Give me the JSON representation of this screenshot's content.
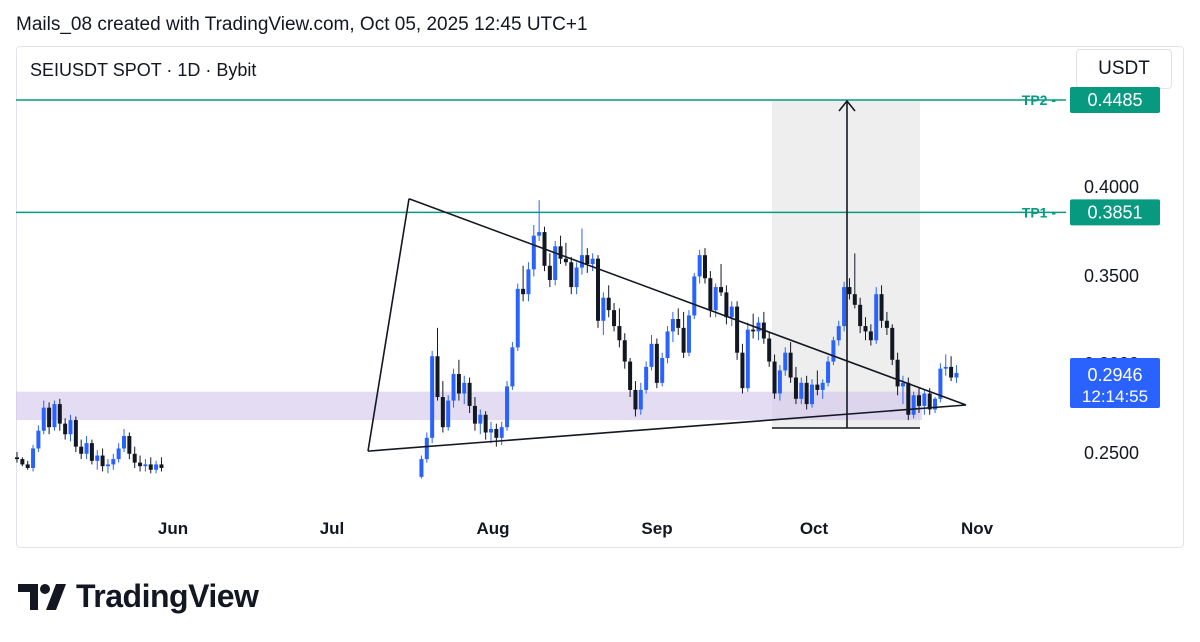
{
  "header": {
    "caption": "Mails_08 created with TradingView.com, Oct 05, 2025 12:45 UTC+1",
    "symbol": "SEIUSDT SPOT · 1D · Bybit",
    "currency": "USDT"
  },
  "brand": {
    "name": "TradingView"
  },
  "colors": {
    "up": "#2962ff",
    "down": "#131722",
    "tp": "#089981",
    "zone": "#d1c4e9",
    "projection": "#ebebeb",
    "last_price_bg": "#2962ff"
  },
  "chart_data": {
    "type": "candlestick",
    "ylim": [
      0.235,
      0.46
    ],
    "x_tick_labels": [
      "Jun",
      "Jul",
      "Aug",
      "Sep",
      "Oct",
      "Nov"
    ],
    "y_tick_labels": [
      "0.4000",
      "0.3500",
      "0.2500"
    ],
    "partially_hidden_tick": "0.3000",
    "levels": [
      {
        "name": "TP2",
        "price": 0.4485,
        "label": "0.4485"
      },
      {
        "name": "TP1",
        "price": 0.3851,
        "label": "0.3851"
      }
    ],
    "last_price": {
      "value": 0.2946,
      "label": "0.2946",
      "countdown": "12:14:55"
    },
    "support_zone": {
      "from": 0.268,
      "to": 0.284
    },
    "triangle": {
      "apex": 0.2765,
      "upper_start": 0.3928,
      "lower_start": 0.2505
    },
    "projection_target": 0.4485,
    "candles": [
      [
        0.247,
        0.25,
        0.244,
        0.246
      ],
      [
        0.246,
        0.247,
        0.242,
        0.243
      ],
      [
        0.243,
        0.245,
        0.24,
        0.241
      ],
      [
        0.241,
        0.254,
        0.239,
        0.252
      ],
      [
        0.252,
        0.265,
        0.25,
        0.262
      ],
      [
        0.262,
        0.279,
        0.26,
        0.275
      ],
      [
        0.275,
        0.278,
        0.26,
        0.264
      ],
      [
        0.264,
        0.279,
        0.262,
        0.277
      ],
      [
        0.277,
        0.28,
        0.262,
        0.266
      ],
      [
        0.266,
        0.269,
        0.257,
        0.26
      ],
      [
        0.26,
        0.271,
        0.256,
        0.268
      ],
      [
        0.268,
        0.27,
        0.25,
        0.253
      ],
      [
        0.253,
        0.257,
        0.246,
        0.249
      ],
      [
        0.249,
        0.259,
        0.246,
        0.255
      ],
      [
        0.255,
        0.257,
        0.243,
        0.245
      ],
      [
        0.245,
        0.251,
        0.24,
        0.248
      ],
      [
        0.248,
        0.252,
        0.239,
        0.242
      ],
      [
        0.242,
        0.246,
        0.238,
        0.243
      ],
      [
        0.243,
        0.249,
        0.24,
        0.246
      ],
      [
        0.246,
        0.255,
        0.244,
        0.252
      ],
      [
        0.252,
        0.263,
        0.25,
        0.259
      ],
      [
        0.259,
        0.261,
        0.246,
        0.249
      ],
      [
        0.249,
        0.253,
        0.241,
        0.244
      ],
      [
        0.244,
        0.248,
        0.239,
        0.242
      ],
      [
        0.242,
        0.246,
        0.239,
        0.243
      ],
      [
        0.243,
        0.247,
        0.238,
        0.24
      ],
      [
        0.24,
        0.245,
        0.238,
        0.243
      ],
      [
        0.243,
        0.247,
        0.239,
        0.241
      ],
      [
        0.236,
        0.248,
        0.235,
        0.246
      ],
      [
        0.246,
        0.261,
        0.244,
        0.258
      ],
      [
        0.258,
        0.307,
        0.255,
        0.304
      ],
      [
        0.304,
        0.32,
        0.279,
        0.281
      ],
      [
        0.281,
        0.29,
        0.261,
        0.264
      ],
      [
        0.264,
        0.282,
        0.262,
        0.279
      ],
      [
        0.279,
        0.297,
        0.275,
        0.294
      ],
      [
        0.294,
        0.302,
        0.279,
        0.283
      ],
      [
        0.283,
        0.293,
        0.277,
        0.289
      ],
      [
        0.289,
        0.292,
        0.272,
        0.276
      ],
      [
        0.276,
        0.281,
        0.262,
        0.266
      ],
      [
        0.266,
        0.274,
        0.26,
        0.271
      ],
      [
        0.271,
        0.273,
        0.257,
        0.261
      ],
      [
        0.261,
        0.267,
        0.255,
        0.263
      ],
      [
        0.263,
        0.266,
        0.253,
        0.258
      ],
      [
        0.258,
        0.267,
        0.254,
        0.264
      ],
      [
        0.264,
        0.29,
        0.262,
        0.287
      ],
      [
        0.287,
        0.312,
        0.285,
        0.309
      ],
      [
        0.309,
        0.345,
        0.307,
        0.342
      ],
      [
        0.342,
        0.355,
        0.335,
        0.339
      ],
      [
        0.339,
        0.357,
        0.335,
        0.353
      ],
      [
        0.353,
        0.378,
        0.349,
        0.372
      ],
      [
        0.372,
        0.392,
        0.369,
        0.374
      ],
      [
        0.374,
        0.377,
        0.352,
        0.355
      ],
      [
        0.355,
        0.362,
        0.343,
        0.347
      ],
      [
        0.347,
        0.369,
        0.344,
        0.366
      ],
      [
        0.366,
        0.372,
        0.356,
        0.359
      ],
      [
        0.359,
        0.368,
        0.355,
        0.357
      ],
      [
        0.357,
        0.36,
        0.339,
        0.343
      ],
      [
        0.343,
        0.357,
        0.339,
        0.354
      ],
      [
        0.354,
        0.376,
        0.35,
        0.361
      ],
      [
        0.361,
        0.365,
        0.351,
        0.356
      ],
      [
        0.356,
        0.362,
        0.352,
        0.359
      ],
      [
        0.359,
        0.361,
        0.32,
        0.324
      ],
      [
        0.324,
        0.34,
        0.316,
        0.337
      ],
      [
        0.337,
        0.344,
        0.326,
        0.33
      ],
      [
        0.33,
        0.334,
        0.318,
        0.321
      ],
      [
        0.321,
        0.331,
        0.309,
        0.313
      ],
      [
        0.313,
        0.317,
        0.297,
        0.301
      ],
      [
        0.301,
        0.303,
        0.281,
        0.285
      ],
      [
        0.285,
        0.29,
        0.27,
        0.274
      ],
      [
        0.274,
        0.289,
        0.271,
        0.285
      ],
      [
        0.285,
        0.301,
        0.283,
        0.298
      ],
      [
        0.298,
        0.316,
        0.296,
        0.311
      ],
      [
        0.311,
        0.314,
        0.286,
        0.289
      ],
      [
        0.289,
        0.306,
        0.287,
        0.303
      ],
      [
        0.303,
        0.321,
        0.3,
        0.318
      ],
      [
        0.318,
        0.329,
        0.312,
        0.325
      ],
      [
        0.325,
        0.331,
        0.316,
        0.32
      ],
      [
        0.32,
        0.329,
        0.303,
        0.306
      ],
      [
        0.306,
        0.33,
        0.304,
        0.327
      ],
      [
        0.327,
        0.351,
        0.325,
        0.349
      ],
      [
        0.349,
        0.364,
        0.345,
        0.361
      ],
      [
        0.361,
        0.365,
        0.345,
        0.348
      ],
      [
        0.348,
        0.352,
        0.326,
        0.33
      ],
      [
        0.33,
        0.345,
        0.326,
        0.343
      ],
      [
        0.343,
        0.356,
        0.338,
        0.34
      ],
      [
        0.34,
        0.344,
        0.322,
        0.326
      ],
      [
        0.326,
        0.335,
        0.321,
        0.332
      ],
      [
        0.332,
        0.335,
        0.302,
        0.306
      ],
      [
        0.306,
        0.311,
        0.283,
        0.286
      ],
      [
        0.286,
        0.323,
        0.284,
        0.319
      ],
      [
        0.319,
        0.328,
        0.314,
        0.318
      ],
      [
        0.318,
        0.326,
        0.313,
        0.323
      ],
      [
        0.323,
        0.329,
        0.311,
        0.314
      ],
      [
        0.314,
        0.318,
        0.298,
        0.301
      ],
      [
        0.301,
        0.305,
        0.28,
        0.283
      ],
      [
        0.283,
        0.299,
        0.279,
        0.296
      ],
      [
        0.296,
        0.309,
        0.293,
        0.306
      ],
      [
        0.306,
        0.312,
        0.289,
        0.292
      ],
      [
        0.292,
        0.298,
        0.277,
        0.28
      ],
      [
        0.28,
        0.292,
        0.277,
        0.289
      ],
      [
        0.289,
        0.293,
        0.274,
        0.277
      ],
      [
        0.277,
        0.291,
        0.275,
        0.288
      ],
      [
        0.288,
        0.296,
        0.282,
        0.285
      ],
      [
        0.285,
        0.291,
        0.28,
        0.289
      ],
      [
        0.289,
        0.304,
        0.287,
        0.301
      ],
      [
        0.301,
        0.315,
        0.299,
        0.313
      ],
      [
        0.313,
        0.324,
        0.31,
        0.321
      ],
      [
        0.321,
        0.346,
        0.318,
        0.343
      ],
      [
        0.343,
        0.348,
        0.336,
        0.339
      ],
      [
        0.339,
        0.362,
        0.331,
        0.333
      ],
      [
        0.333,
        0.337,
        0.317,
        0.321
      ],
      [
        0.321,
        0.326,
        0.313,
        0.318
      ],
      [
        0.318,
        0.322,
        0.31,
        0.313
      ],
      [
        0.313,
        0.343,
        0.311,
        0.339
      ],
      [
        0.339,
        0.344,
        0.32,
        0.324
      ],
      [
        0.324,
        0.329,
        0.316,
        0.32
      ],
      [
        0.32,
        0.322,
        0.299,
        0.302
      ],
      [
        0.302,
        0.306,
        0.282,
        0.287
      ],
      [
        0.287,
        0.293,
        0.277,
        0.289
      ],
      [
        0.289,
        0.292,
        0.268,
        0.271
      ],
      [
        0.271,
        0.284,
        0.269,
        0.282
      ],
      [
        0.282,
        0.286,
        0.272,
        0.276
      ],
      [
        0.276,
        0.285,
        0.271,
        0.283
      ],
      [
        0.283,
        0.286,
        0.271,
        0.274
      ],
      [
        0.274,
        0.281,
        0.272,
        0.28
      ],
      [
        0.28,
        0.3,
        0.278,
        0.297
      ],
      [
        0.297,
        0.305,
        0.293,
        0.298
      ],
      [
        0.298,
        0.304,
        0.29,
        0.292
      ],
      [
        0.292,
        0.299,
        0.289,
        0.2946
      ]
    ]
  }
}
